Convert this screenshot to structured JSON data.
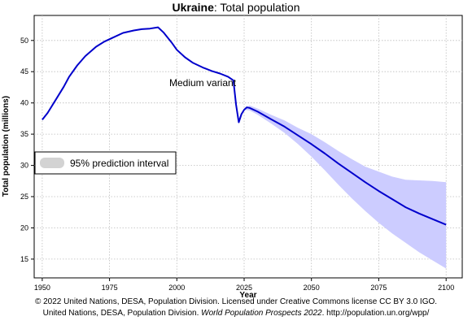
{
  "chart_data": {
    "type": "line",
    "title_country": "Ukraine",
    "title_rest": ": Total population",
    "xlabel": "Year",
    "ylabel": "Total population (millions)",
    "xlim": [
      1947,
      2106
    ],
    "ylim": [
      12,
      54
    ],
    "xticks": [
      1950,
      1975,
      2000,
      2025,
      2050,
      2075,
      2100
    ],
    "yticks": [
      15,
      20,
      25,
      30,
      35,
      40,
      45,
      50
    ],
    "grid": true,
    "legend_position": "left",
    "annotation": "Medium variant",
    "series": [
      {
        "name": "Medium variant",
        "color": "#0000cc",
        "x": [
          1950,
          1952,
          1955,
          1958,
          1960,
          1963,
          1966,
          1970,
          1973,
          1976,
          1980,
          1984,
          1987,
          1990,
          1993,
          1995,
          1998,
          2000,
          2003,
          2006,
          2010,
          2013,
          2016,
          2019,
          2020,
          2021,
          2022,
          2023,
          2024,
          2025,
          2026,
          2027,
          2030,
          2035,
          2040,
          2045,
          2050,
          2055,
          2060,
          2065,
          2070,
          2075,
          2080,
          2085,
          2090,
          2095,
          2100
        ],
        "values": [
          37.3,
          38.4,
          40.5,
          42.6,
          44.2,
          46.0,
          47.5,
          49.0,
          49.8,
          50.4,
          51.2,
          51.6,
          51.8,
          51.9,
          52.1,
          51.3,
          49.7,
          48.5,
          47.3,
          46.4,
          45.6,
          45.1,
          44.7,
          44.2,
          43.9,
          43.6,
          39.7,
          36.9,
          38.2,
          38.9,
          39.3,
          39.2,
          38.6,
          37.4,
          36.2,
          34.8,
          33.4,
          31.9,
          30.3,
          28.8,
          27.3,
          25.9,
          24.6,
          23.3,
          22.3,
          21.4,
          20.5
        ]
      }
    ],
    "prediction_interval": {
      "name": "95% prediction interval",
      "color": "#ccccff",
      "x": [
        2025,
        2027,
        2030,
        2035,
        2040,
        2045,
        2050,
        2055,
        2060,
        2065,
        2070,
        2075,
        2080,
        2085,
        2090,
        2095,
        2100
      ],
      "lower": [
        38.9,
        38.8,
        38.1,
        36.7,
        35.2,
        33.4,
        31.4,
        29.2,
        26.9,
        24.7,
        22.7,
        20.8,
        19.1,
        17.6,
        16.1,
        14.8,
        13.5
      ],
      "upper": [
        38.9,
        39.6,
        39.1,
        38.1,
        37.2,
        36.0,
        35.0,
        33.7,
        32.3,
        31.0,
        29.8,
        29.0,
        28.2,
        27.7,
        27.6,
        27.5,
        27.3
      ]
    }
  },
  "footer": {
    "line1": "© 2022 United Nations, DESA, Population Division. Licensed under Creative Commons license CC BY 3.0 IGO.",
    "line2_prefix": "United Nations, DESA, Population Division. ",
    "line2_italic": "World Population Prospects 2022",
    "line2_suffix": ". http://population.un.org/wpp/"
  }
}
